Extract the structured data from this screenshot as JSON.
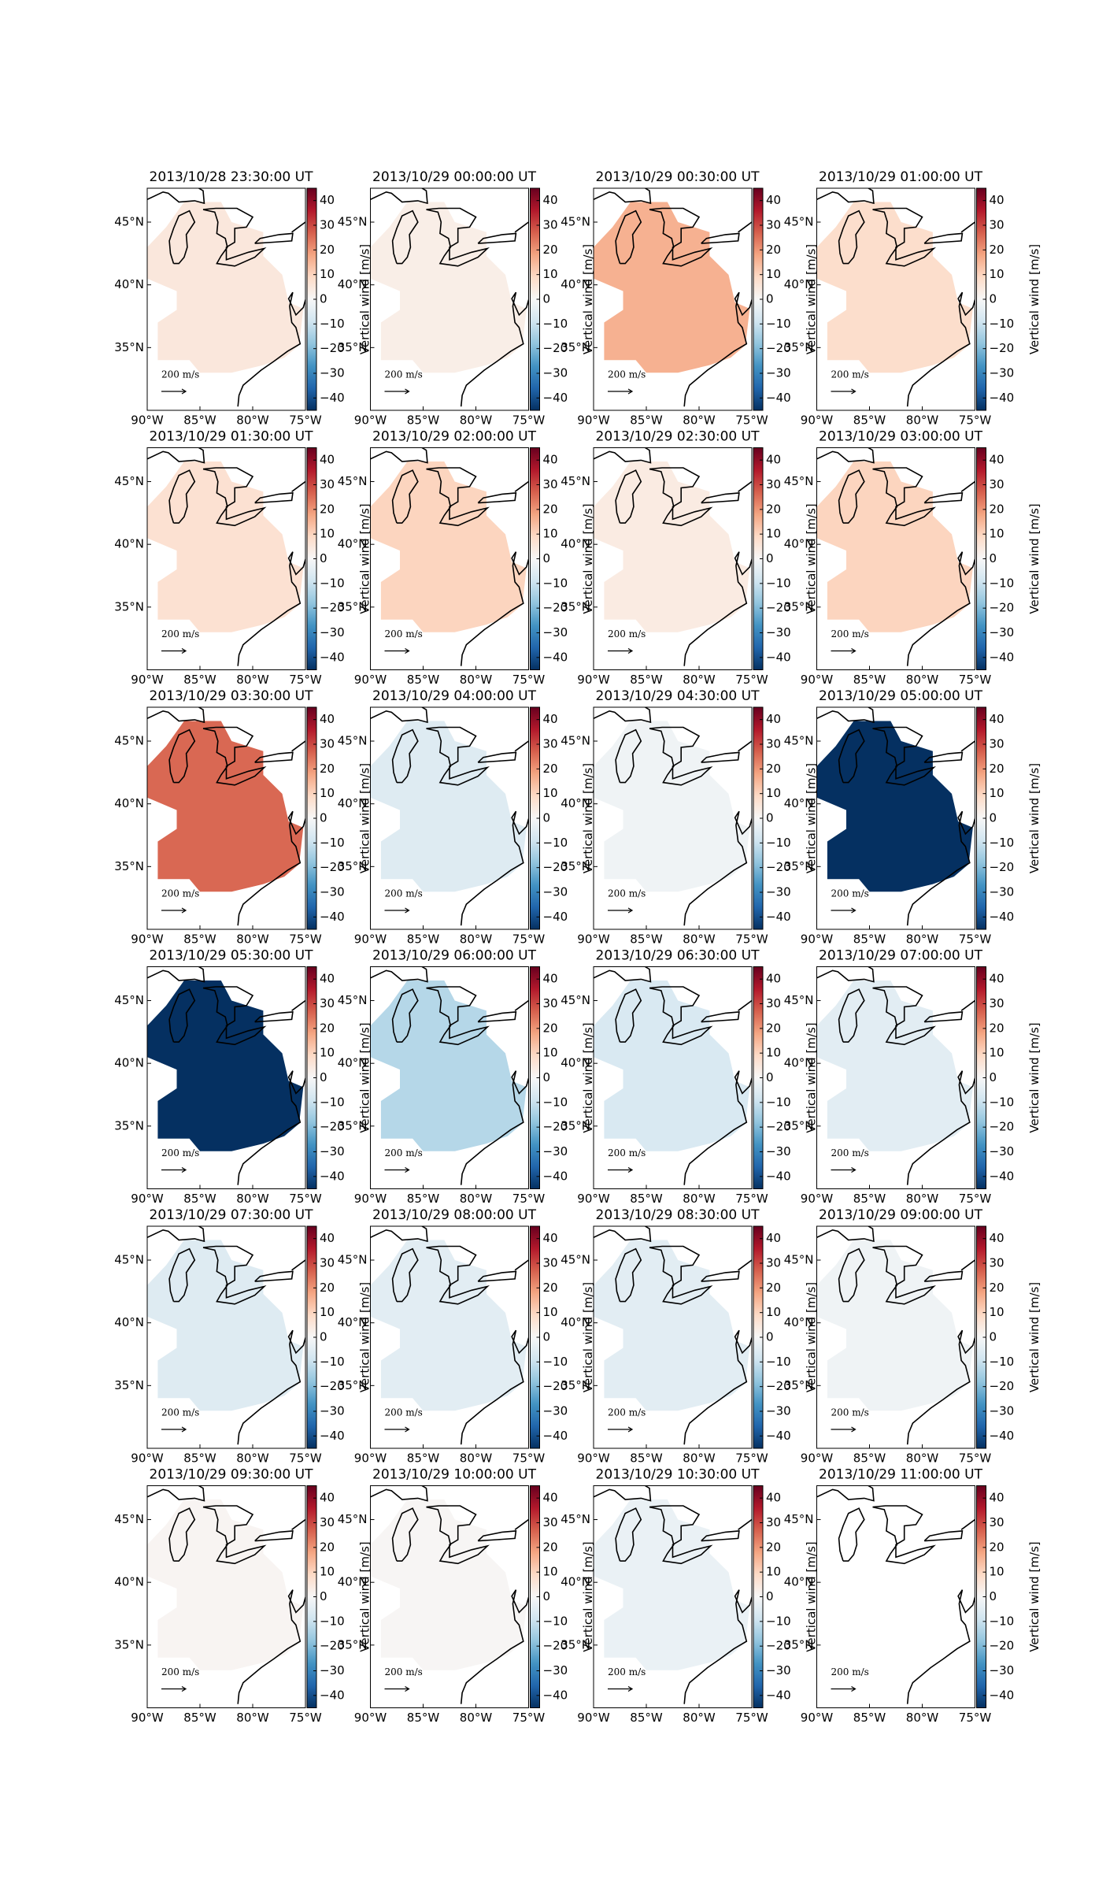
{
  "figure": {
    "xlim": [
      -90,
      -75
    ],
    "ylim": [
      30,
      47.7
    ],
    "xticks": [
      {
        "value": -90,
        "label": "90°W"
      },
      {
        "value": -85,
        "label": "85°W"
      },
      {
        "value": -80,
        "label": "80°W"
      },
      {
        "value": -75,
        "label": "75°W"
      }
    ],
    "yticks": [
      {
        "value": 35,
        "label": "35°N"
      },
      {
        "value": 40,
        "label": "40°N"
      },
      {
        "value": 45,
        "label": "45°N"
      }
    ],
    "quiver_key_label": "200 m/s",
    "colorbar": {
      "label": "Vertical wind [m/s]",
      "lim": [
        -45,
        45
      ],
      "colormap": "RdBu_r",
      "ticks": [
        {
          "value": -40,
          "label": "−40"
        },
        {
          "value": -30,
          "label": "−30"
        },
        {
          "value": -20,
          "label": "−20"
        },
        {
          "value": -10,
          "label": "−10"
        },
        0,
        10,
        20,
        30,
        40
      ]
    }
  },
  "panels": [
    {
      "title": "2013/10/28 23:30:00 UT",
      "value": 5
    },
    {
      "title": "2013/10/29 00:00:00 UT",
      "value": 3
    },
    {
      "title": "2013/10/29 00:30:00 UT",
      "value": 16
    },
    {
      "title": "2013/10/29 01:00:00 UT",
      "value": 8
    },
    {
      "title": "2013/10/29 01:30:00 UT",
      "value": 7
    },
    {
      "title": "2013/10/29 02:00:00 UT",
      "value": 10
    },
    {
      "title": "2013/10/29 02:30:00 UT",
      "value": 4
    },
    {
      "title": "2013/10/29 03:00:00 UT",
      "value": 10
    },
    {
      "title": "2013/10/29 03:30:00 UT",
      "value": 26
    },
    {
      "title": "2013/10/29 04:00:00 UT",
      "value": -6
    },
    {
      "title": "2013/10/29 04:30:00 UT",
      "value": -2
    },
    {
      "title": "2013/10/29 05:00:00 UT",
      "value": -45
    },
    {
      "title": "2013/10/29 05:30:00 UT",
      "value": -45
    },
    {
      "title": "2013/10/29 06:00:00 UT",
      "value": -13
    },
    {
      "title": "2013/10/29 06:30:00 UT",
      "value": -7
    },
    {
      "title": "2013/10/29 07:00:00 UT",
      "value": -5
    },
    {
      "title": "2013/10/29 07:30:00 UT",
      "value": -6
    },
    {
      "title": "2013/10/29 08:00:00 UT",
      "value": -5
    },
    {
      "title": "2013/10/29 08:30:00 UT",
      "value": -5
    },
    {
      "title": "2013/10/29 09:00:00 UT",
      "value": -2
    },
    {
      "title": "2013/10/29 09:30:00 UT",
      "value": 1
    },
    {
      "title": "2013/10/29 10:00:00 UT",
      "value": 0.5
    },
    {
      "title": "2013/10/29 10:30:00 UT",
      "value": -3
    },
    {
      "title": "2013/10/29 11:00:00 UT",
      "value": null
    }
  ]
}
